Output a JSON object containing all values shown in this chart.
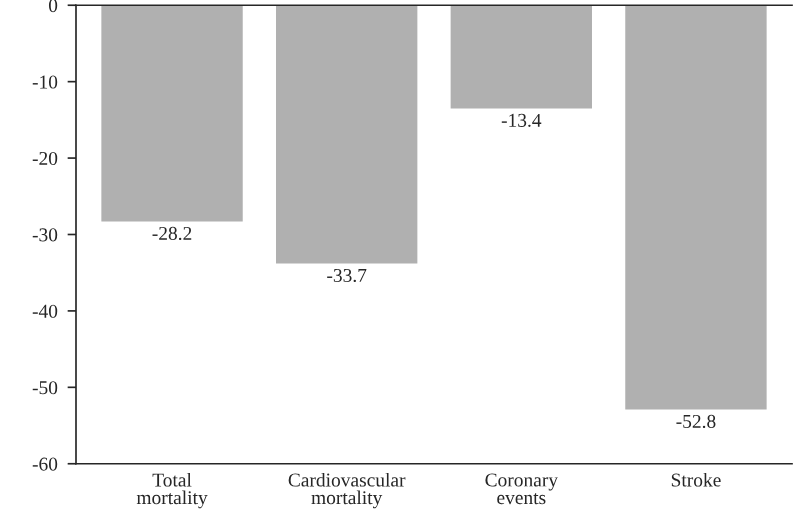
{
  "chart_data": {
    "type": "bar",
    "categories": [
      "Total\nmortality",
      "Cardiovascular\nmortality",
      "Coronary\nevents",
      "Stroke"
    ],
    "values": [
      -28.2,
      -33.7,
      -13.4,
      -52.8
    ],
    "color": "#b0b0b0",
    "ylim": [
      -60,
      0
    ],
    "yticks": [
      -60,
      -50,
      -40,
      -30,
      -20,
      -10,
      0
    ],
    "data_labels": true,
    "grid": false,
    "legend": false
  }
}
